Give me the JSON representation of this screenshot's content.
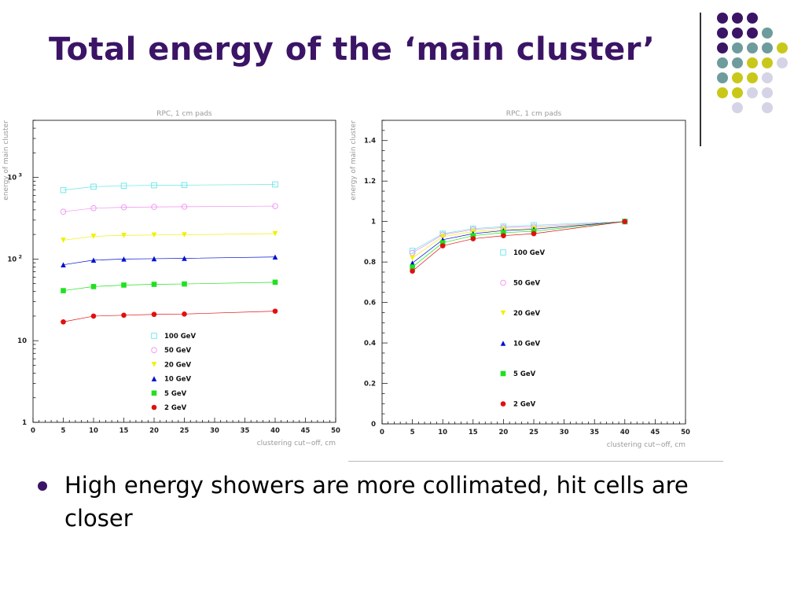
{
  "slide": {
    "title": "Total energy of the ‘main cluster’",
    "bullet": "High energy showers are more collimated, hit cells are closer",
    "title_color": "#3b1466",
    "decoration": {
      "dot_colors": {
        "purple": "#3b1466",
        "teal": "#6e9c9c",
        "olive": "#c9c81a",
        "lavender": "#d4d4e6"
      },
      "dot_rows": [
        [
          "purple",
          "purple",
          "purple",
          "",
          "",
          ""
        ],
        [
          "purple",
          "purple",
          "purple",
          "teal",
          "",
          ""
        ],
        [
          "purple",
          "teal",
          "teal",
          "teal",
          "olive",
          ""
        ],
        [
          "teal",
          "teal",
          "olive",
          "olive",
          "lavender",
          ""
        ],
        [
          "teal",
          "olive",
          "olive",
          "lavender",
          "",
          ""
        ],
        [
          "olive",
          "olive",
          "lavender",
          "lavender",
          "",
          ""
        ],
        [
          "",
          "lavender",
          "",
          "lavender",
          "",
          ""
        ]
      ]
    }
  },
  "chart_data": [
    {
      "type": "scatter",
      "title": "RPC, 1 cm pads",
      "xlabel": "clustering cut−off, cm",
      "ylabel": "energy of main cluster",
      "yscale": "log",
      "xlim": [
        0,
        50
      ],
      "ylim": [
        1,
        5000
      ],
      "xticks": [
        0,
        5,
        10,
        15,
        20,
        25,
        30,
        35,
        40,
        45,
        50
      ],
      "yticks": [
        {
          "value": 1,
          "label": "1"
        },
        {
          "value": 10,
          "label": "10"
        },
        {
          "value": 100,
          "label": "10 2"
        },
        {
          "value": 1000,
          "label": "10 3"
        }
      ],
      "grid": false,
      "legend": "bottom-center",
      "x": [
        5,
        10,
        15,
        20,
        25,
        40
      ],
      "series": [
        {
          "name": "100 GeV",
          "marker": "open-square",
          "color": "#66e6e6",
          "values": [
            700,
            770,
            790,
            800,
            805,
            820
          ]
        },
        {
          "name": "50 GeV",
          "marker": "open-circle",
          "color": "#f090f0",
          "values": [
            380,
            420,
            430,
            435,
            437,
            445
          ]
        },
        {
          "name": "20 GeV",
          "marker": "triangle-down",
          "color": "#f0f000",
          "values": [
            170,
            190,
            195,
            197,
            198,
            205
          ]
        },
        {
          "name": "10 GeV",
          "marker": "triangle-up",
          "color": "#0010d0",
          "values": [
            85,
            97,
            100,
            101,
            102,
            106
          ]
        },
        {
          "name": "5 GeV",
          "marker": "square",
          "color": "#20e020",
          "values": [
            41,
            46,
            48,
            49,
            49.5,
            52
          ]
        },
        {
          "name": "2 GeV",
          "marker": "circle",
          "color": "#e01010",
          "values": [
            17,
            20,
            20.5,
            21,
            21.2,
            23
          ]
        }
      ]
    },
    {
      "type": "scatter",
      "title": "RPC, 1 cm pads",
      "xlabel": "clustering cut−off, cm",
      "ylabel": "energy of main cluster",
      "yscale": "linear",
      "xlim": [
        0,
        50
      ],
      "ylim": [
        0,
        1.5
      ],
      "xticks": [
        0,
        5,
        10,
        15,
        20,
        25,
        30,
        35,
        40,
        45,
        50
      ],
      "yticks": [
        {
          "value": 0,
          "label": "0"
        },
        {
          "value": 0.2,
          "label": "0.2"
        },
        {
          "value": 0.4,
          "label": "0.4"
        },
        {
          "value": 0.6,
          "label": "0.6"
        },
        {
          "value": 0.8,
          "label": "0.8"
        },
        {
          "value": 1,
          "label": "1"
        },
        {
          "value": 1.2,
          "label": "1.2"
        },
        {
          "value": 1.4,
          "label": "1.4"
        }
      ],
      "grid": false,
      "legend": "center-right",
      "x": [
        5,
        10,
        15,
        20,
        25,
        40
      ],
      "series": [
        {
          "name": "100 GeV",
          "marker": "open-square",
          "color": "#66e6e6",
          "values": [
            0.855,
            0.94,
            0.965,
            0.975,
            0.982,
            1.0
          ]
        },
        {
          "name": "50 GeV",
          "marker": "open-circle",
          "color": "#f090f0",
          "values": [
            0.845,
            0.935,
            0.96,
            0.97,
            0.975,
            1.0
          ]
        },
        {
          "name": "20 GeV",
          "marker": "triangle-down",
          "color": "#f0f000",
          "values": [
            0.82,
            0.925,
            0.95,
            0.96,
            0.966,
            1.0
          ]
        },
        {
          "name": "10 GeV",
          "marker": "triangle-up",
          "color": "#0010d0",
          "values": [
            0.795,
            0.91,
            0.94,
            0.955,
            0.962,
            1.0
          ]
        },
        {
          "name": "5 GeV",
          "marker": "square",
          "color": "#20e020",
          "values": [
            0.775,
            0.895,
            0.93,
            0.945,
            0.952,
            1.0
          ]
        },
        {
          "name": "2 GeV",
          "marker": "circle",
          "color": "#e01010",
          "values": [
            0.755,
            0.88,
            0.915,
            0.93,
            0.94,
            1.0
          ]
        }
      ]
    }
  ]
}
